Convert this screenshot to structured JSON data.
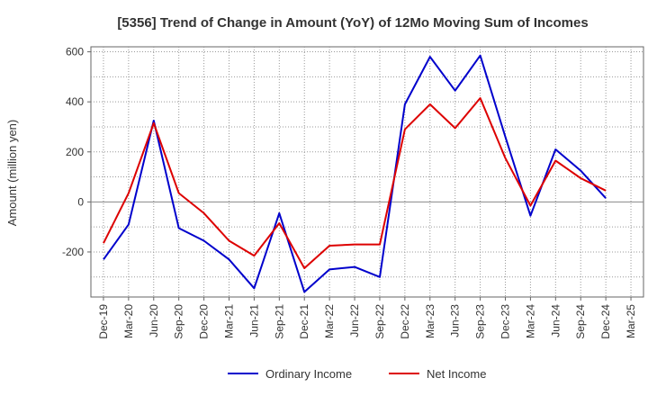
{
  "chart_data": {
    "type": "line",
    "title": "[5356]  Trend of Change in Amount (YoY) of 12Mo Moving Sum of Incomes",
    "xlabel": "",
    "ylabel": "Amount (million yen)",
    "ylim": [
      -380,
      620
    ],
    "yticks": [
      -200,
      0,
      200,
      400,
      600
    ],
    "ytick_labels": [
      "-200",
      "0",
      "200",
      "400",
      "600"
    ],
    "grid": true,
    "legend_position": "bottom-center",
    "categories": [
      "Dec-19",
      "Mar-20",
      "Jun-20",
      "Sep-20",
      "Dec-20",
      "Mar-21",
      "Jun-21",
      "Sep-21",
      "Dec-21",
      "Mar-22",
      "Jun-22",
      "Sep-22",
      "Dec-22",
      "Mar-23",
      "Jun-23",
      "Sep-23",
      "Dec-23",
      "Mar-24",
      "Jun-24",
      "Sep-24",
      "Dec-24",
      "Mar-25"
    ],
    "series": [
      {
        "name": "Ordinary Income",
        "color": "#0000cc",
        "values": [
          -230,
          -90,
          325,
          -105,
          -155,
          -230,
          -345,
          -45,
          -360,
          -270,
          -260,
          -300,
          390,
          580,
          445,
          585,
          260,
          -55,
          210,
          125,
          15,
          null
        ]
      },
      {
        "name": "Net Income",
        "color": "#dd0000",
        "values": [
          -165,
          35,
          315,
          35,
          -45,
          -155,
          -215,
          -85,
          -265,
          -175,
          -170,
          -170,
          290,
          390,
          295,
          415,
          175,
          -15,
          165,
          95,
          45,
          null
        ]
      }
    ]
  }
}
